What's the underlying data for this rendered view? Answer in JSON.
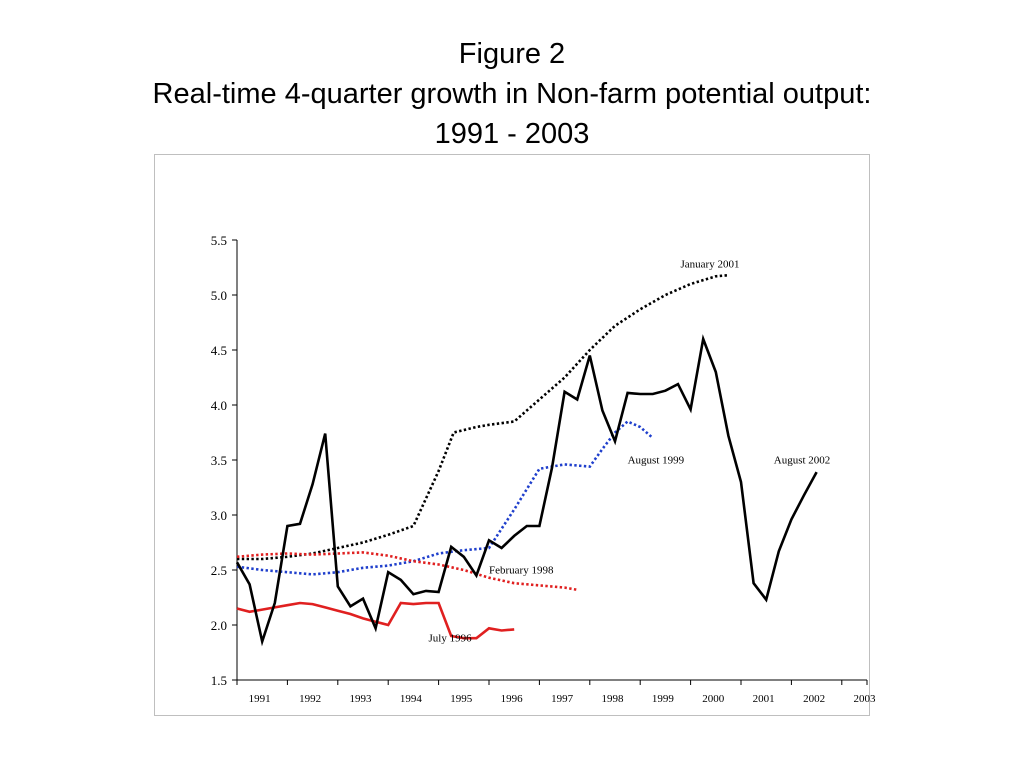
{
  "title": {
    "line1": "Figure 2",
    "line2": "Real-time 4-quarter growth in Non-farm potential output:",
    "line3": "1991 - 2003"
  },
  "chart_data": {
    "type": "line",
    "title": "Figure 2 Real-time 4-quarter growth in Non-farm potential output: 1991 - 2003",
    "xlabel": "",
    "ylabel": "",
    "xlim": [
      1991.0,
      2003.5
    ],
    "ylim": [
      1.5,
      5.5
    ],
    "x_ticks": [
      "1991",
      "1992",
      "1993",
      "1994",
      "1995",
      "1996",
      "1997",
      "1998",
      "1999",
      "2000",
      "2001",
      "2002",
      "2003"
    ],
    "y_ticks": [
      "1.5",
      "2.0",
      "2.5",
      "3.0",
      "3.5",
      "4.0",
      "4.5",
      "5.0",
      "5.5"
    ],
    "grid": false,
    "legend": "none (series labeled inline)",
    "series": [
      {
        "name": "January 2001",
        "color": "#000000",
        "style": "dotted",
        "label_x": 1999.8,
        "label_y": 5.25,
        "x": [
          1991.0,
          1991.5,
          1992.0,
          1992.5,
          1993.0,
          1993.5,
          1994.0,
          1994.5,
          1995.0,
          1995.3,
          1995.75,
          1996.0,
          1996.5,
          1997.0,
          1997.5,
          1998.0,
          1998.5,
          1999.0,
          1999.5,
          2000.0,
          2000.5,
          2000.75
        ],
        "y": [
          2.6,
          2.6,
          2.62,
          2.65,
          2.7,
          2.75,
          2.82,
          2.9,
          3.4,
          3.75,
          3.8,
          3.82,
          3.85,
          4.05,
          4.25,
          4.5,
          4.72,
          4.87,
          5.0,
          5.1,
          5.17,
          5.18
        ]
      },
      {
        "name": "August 1999",
        "color": "#1f3fcc",
        "style": "dotted",
        "label_x": 1998.75,
        "label_y": 3.47,
        "x": [
          1991.0,
          1991.5,
          1992.0,
          1992.5,
          1993.0,
          1993.5,
          1994.0,
          1994.5,
          1995.0,
          1995.5,
          1996.0,
          1996.5,
          1997.0,
          1997.5,
          1998.0,
          1998.25,
          1998.5,
          1998.75,
          1999.0,
          1999.25
        ],
        "y": [
          2.53,
          2.5,
          2.48,
          2.46,
          2.48,
          2.52,
          2.54,
          2.58,
          2.65,
          2.68,
          2.7,
          3.05,
          3.42,
          3.46,
          3.44,
          3.6,
          3.75,
          3.85,
          3.8,
          3.7
        ]
      },
      {
        "name": "February 1998",
        "color": "#e02020",
        "style": "dotted",
        "label_x": 1996.0,
        "label_y": 2.47,
        "x": [
          1991.0,
          1991.5,
          1992.0,
          1992.5,
          1993.0,
          1993.5,
          1994.0,
          1994.5,
          1995.0,
          1995.5,
          1996.0,
          1996.5,
          1997.0,
          1997.5,
          1997.75
        ],
        "y": [
          2.62,
          2.64,
          2.65,
          2.64,
          2.65,
          2.66,
          2.63,
          2.58,
          2.55,
          2.5,
          2.43,
          2.38,
          2.36,
          2.34,
          2.32
        ]
      },
      {
        "name": "July 1996",
        "color": "#e02020",
        "style": "solid",
        "label_x": 1994.8,
        "label_y": 1.85,
        "x": [
          1991.0,
          1991.25,
          1991.5,
          1991.75,
          1992.0,
          1992.25,
          1992.5,
          1992.75,
          1993.0,
          1993.25,
          1993.5,
          1993.75,
          1994.0,
          1994.25,
          1994.5,
          1994.75,
          1995.0,
          1995.25,
          1995.5,
          1995.75,
          1996.0,
          1996.25,
          1996.5
        ],
        "y": [
          2.15,
          2.12,
          2.14,
          2.16,
          2.18,
          2.2,
          2.19,
          2.16,
          2.13,
          2.1,
          2.06,
          2.03,
          2.0,
          2.2,
          2.19,
          2.2,
          2.2,
          1.9,
          1.88,
          1.88,
          1.97,
          1.95,
          1.96
        ]
      },
      {
        "name": "August 2002",
        "color": "#000000",
        "style": "solid",
        "label_x": 2001.65,
        "label_y": 3.47,
        "x": [
          1991.0,
          1991.25,
          1991.5,
          1991.75,
          1992.0,
          1992.25,
          1992.5,
          1992.75,
          1993.0,
          1993.25,
          1993.5,
          1993.75,
          1994.0,
          1994.25,
          1994.5,
          1994.75,
          1995.0,
          1995.25,
          1995.5,
          1995.75,
          1996.0,
          1996.25,
          1996.5,
          1996.75,
          1997.0,
          1997.25,
          1997.5,
          1997.75,
          1998.0,
          1998.25,
          1998.5,
          1998.75,
          1999.0,
          1999.25,
          1999.5,
          1999.75,
          2000.0,
          2000.25,
          2000.5,
          2000.75,
          2001.0,
          2001.25,
          2001.5,
          2001.75,
          2002.0,
          2002.25,
          2002.5
        ],
        "y": [
          2.57,
          2.37,
          1.85,
          2.2,
          2.9,
          2.92,
          3.28,
          3.74,
          2.35,
          2.17,
          2.24,
          1.97,
          2.48,
          2.41,
          2.28,
          2.31,
          2.3,
          2.71,
          2.62,
          2.45,
          2.77,
          2.7,
          2.81,
          2.9,
          2.9,
          3.43,
          4.12,
          4.05,
          4.45,
          3.95,
          3.67,
          4.11,
          4.1,
          4.1,
          4.13,
          4.19,
          3.96,
          4.6,
          4.3,
          3.72,
          3.3,
          2.38,
          2.23,
          2.67,
          2.96,
          3.18,
          3.39
        ]
      }
    ]
  }
}
